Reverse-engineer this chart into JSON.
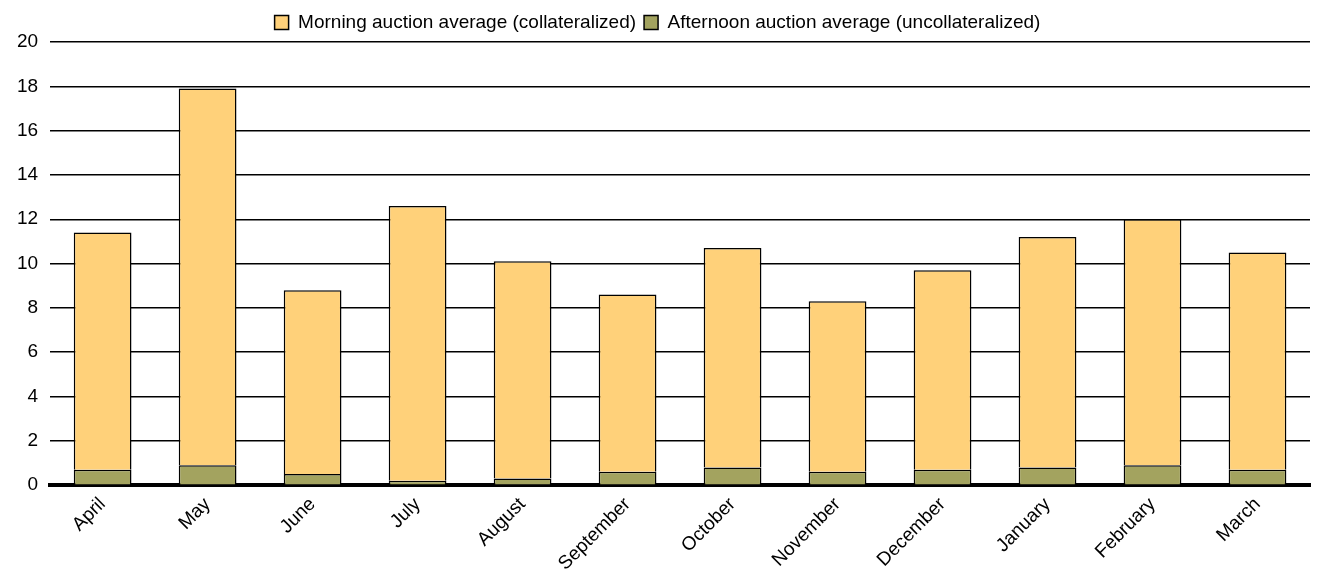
{
  "chart_data": {
    "type": "bar",
    "stacked": true,
    "categories": [
      "April",
      "May",
      "June",
      "July",
      "August",
      "September",
      "October",
      "November",
      "December",
      "January",
      "February",
      "March"
    ],
    "series": [
      {
        "name": "Afternoon auction average (uncollateralized)",
        "color": "#a3a35f",
        "values": [
          0.7,
          0.9,
          0.5,
          0.2,
          0.3,
          0.6,
          0.8,
          0.6,
          0.7,
          0.8,
          0.9,
          0.7
        ]
      },
      {
        "name": "Morning auction average (collateralized)",
        "color": "#ffd17a",
        "values": [
          10.7,
          17.0,
          8.3,
          12.4,
          9.8,
          8.0,
          9.9,
          7.7,
          9.0,
          10.4,
          11.1,
          9.8
        ]
      }
    ],
    "ylim": [
      0,
      20
    ],
    "yticks": [
      0,
      2,
      4,
      6,
      8,
      10,
      12,
      14,
      16,
      18,
      20
    ],
    "grid": "y",
    "legend": "top"
  }
}
